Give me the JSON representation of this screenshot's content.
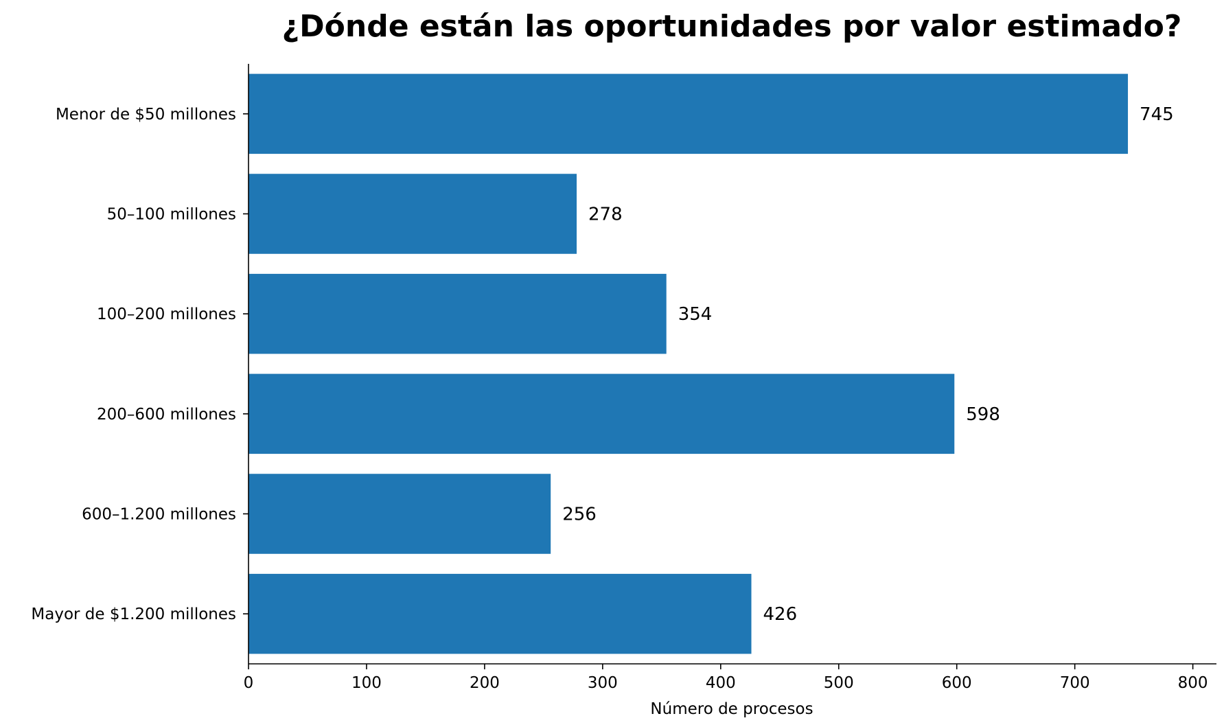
{
  "chart_data": {
    "type": "bar",
    "orientation": "horizontal",
    "title": "¿Dónde están las oportunidades por valor estimado?",
    "xlabel": "Número de procesos",
    "ylabel": "",
    "categories": [
      "Menor de $50 millones",
      "50–100 millones",
      "100–200 millones",
      "200–600 millones",
      "600–1.200 millones",
      "Mayor de $1.200 millones"
    ],
    "values": [
      745,
      278,
      354,
      598,
      256,
      426
    ],
    "data_labels": [
      "745",
      "278",
      "354",
      "598",
      "256",
      "426"
    ],
    "xlim": [
      0,
      820
    ],
    "xticks": [
      0,
      100,
      200,
      300,
      400,
      500,
      600,
      700,
      800
    ],
    "xtick_labels": [
      "0",
      "100",
      "200",
      "300",
      "400",
      "500",
      "600",
      "700",
      "800"
    ],
    "bar_color": "#1f77b4",
    "grid": false,
    "legend": "none"
  }
}
